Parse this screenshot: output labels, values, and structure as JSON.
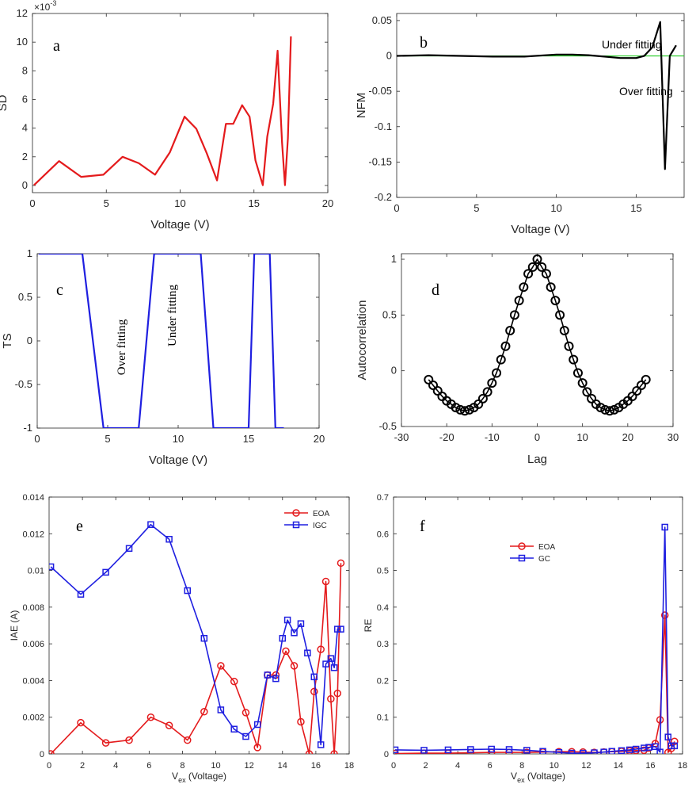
{
  "chart_data": [
    {
      "panel": "a",
      "type": "line",
      "xlabel": "Voltage (V)",
      "ylabel": "SD",
      "xlim": [
        0,
        20
      ],
      "ylim": [
        -0.5,
        12
      ],
      "xticks": [
        0,
        5,
        10,
        15,
        20
      ],
      "yticks": [
        0,
        2,
        4,
        6,
        8,
        10,
        12
      ],
      "exponent": "×10",
      "exponent_power": "-3",
      "series": [
        {
          "name": "SD",
          "color": "#e41a1c",
          "x": [
            0.1,
            1.8,
            3.3,
            4.8,
            6.1,
            7.2,
            8.3,
            9.3,
            10.3,
            11.1,
            11.8,
            12.5,
            13.1,
            13.6,
            14.2,
            14.7,
            15.1,
            15.6,
            15.9,
            16.3,
            16.6,
            16.9,
            17.1,
            17.3,
            17.5
          ],
          "values": [
            0.02,
            1.7,
            0.6,
            0.75,
            2.0,
            1.55,
            0.75,
            2.3,
            4.8,
            3.95,
            2.25,
            0.35,
            4.3,
            4.3,
            5.6,
            4.8,
            1.75,
            0.02,
            3.4,
            5.7,
            9.4,
            3.0,
            0.02,
            3.3,
            10.4
          ]
        }
      ]
    },
    {
      "panel": "b",
      "type": "line",
      "xlabel": "Voltage (V)",
      "ylabel": "NFM",
      "xlim": [
        0,
        18
      ],
      "ylim": [
        -0.2,
        0.06
      ],
      "xticks": [
        0,
        5,
        10,
        15
      ],
      "yticks": [
        0.05,
        0,
        -0.05,
        -0.1,
        -0.15,
        -0.2
      ],
      "ytick_labels": [
        "0.05",
        "0",
        "-0.05",
        "-0.1",
        "-0.15",
        "-0.2"
      ],
      "annotations": [
        "Under fitting",
        "Over fitting"
      ],
      "reference_line": {
        "y": 0,
        "color": "#22cc22"
      },
      "series": [
        {
          "name": "NFM",
          "color": "#000000",
          "x": [
            0,
            2,
            4,
            6,
            8,
            10,
            11,
            12,
            13,
            14,
            14.5,
            15,
            15.5,
            16,
            16.5,
            16.8,
            17.1,
            17.5
          ],
          "values": [
            0,
            0.001,
            0,
            -0.001,
            -0.001,
            0.002,
            0.002,
            0.001,
            -0.001,
            -0.003,
            -0.003,
            -0.003,
            0,
            0.012,
            0.048,
            -0.16,
            0,
            0.015
          ]
        }
      ]
    },
    {
      "panel": "c",
      "type": "line",
      "xlabel": "Voltage (V)",
      "ylabel": "TS",
      "xlim": [
        0,
        20
      ],
      "ylim": [
        -1,
        1
      ],
      "xticks": [
        0,
        5,
        10,
        15,
        20
      ],
      "yticks": [
        1,
        0.5,
        0,
        -0.5,
        -1
      ],
      "ytick_labels": [
        "1",
        "0.5",
        "0",
        "-0.5",
        "-1"
      ],
      "annotations": [
        "Over fitting",
        "Under fitting"
      ],
      "series": [
        {
          "name": "TS",
          "color": "#1f1fe0",
          "x": [
            0.1,
            3.2,
            4.7,
            7.2,
            8.3,
            11.6,
            12.5,
            15.0,
            15.4,
            16.5,
            16.9,
            17.5
          ],
          "values": [
            1,
            1,
            -1,
            -1,
            1,
            1,
            -1,
            -1,
            1,
            1,
            -1,
            -1
          ]
        }
      ]
    },
    {
      "panel": "d",
      "type": "line",
      "xlabel": "Lag",
      "ylabel": "Autocorrelation",
      "xlim": [
        -30,
        30
      ],
      "ylim": [
        -0.5,
        1.05
      ],
      "xticks": [
        -30,
        -20,
        -10,
        0,
        10,
        20,
        30
      ],
      "yticks": [
        1,
        0.5,
        0,
        -0.5
      ],
      "ytick_labels": [
        "1",
        "0.5",
        "0",
        "-0.5"
      ],
      "marker": "circle",
      "series": [
        {
          "name": "Autocorrelation",
          "color": "#000000",
          "x": [
            -24,
            -23,
            -22,
            -21,
            -20,
            -19,
            -18,
            -17,
            -16,
            -15,
            -14,
            -13,
            -12,
            -11,
            -10,
            -9,
            -8,
            -7,
            -6,
            -5,
            -4,
            -3,
            -2,
            -1,
            0,
            1,
            2,
            3,
            4,
            5,
            6,
            7,
            8,
            9,
            10,
            11,
            12,
            13,
            14,
            15,
            16,
            17,
            18,
            19,
            20,
            21,
            22,
            23,
            24
          ],
          "values": [
            -0.08,
            -0.13,
            -0.18,
            -0.23,
            -0.27,
            -0.3,
            -0.33,
            -0.35,
            -0.36,
            -0.35,
            -0.33,
            -0.3,
            -0.25,
            -0.19,
            -0.11,
            -0.02,
            0.1,
            0.22,
            0.36,
            0.5,
            0.63,
            0.75,
            0.87,
            0.93,
            1.0,
            0.93,
            0.87,
            0.75,
            0.63,
            0.5,
            0.36,
            0.22,
            0.1,
            -0.02,
            -0.11,
            -0.19,
            -0.25,
            -0.3,
            -0.33,
            -0.35,
            -0.36,
            -0.35,
            -0.33,
            -0.3,
            -0.27,
            -0.23,
            -0.18,
            -0.13,
            -0.08
          ]
        }
      ]
    },
    {
      "panel": "e",
      "type": "line",
      "xlabel": "V",
      "xlabel_sub": "ex",
      "xlabel_rest": " (Voltage)",
      "ylabel": "IAE (A)",
      "xlim": [
        0,
        18
      ],
      "ylim": [
        0,
        0.014
      ],
      "xticks": [
        0,
        2,
        4,
        6,
        8,
        10,
        12,
        14,
        16,
        18
      ],
      "yticks": [
        0,
        0.002,
        0.004,
        0.006,
        0.008,
        0.01,
        0.012,
        0.014
      ],
      "ytick_labels": [
        "0",
        "0.002",
        "0.004",
        "0.006",
        "0.008",
        "0.01",
        "0.012",
        "0.014"
      ],
      "legend": {
        "position": "top-right",
        "entries": [
          "EOA",
          "IGC"
        ]
      },
      "series": [
        {
          "name": "EOA",
          "color": "#e41a1c",
          "marker": "circle",
          "x": [
            0.1,
            1.9,
            3.4,
            4.8,
            6.1,
            7.2,
            8.3,
            9.3,
            10.3,
            11.1,
            11.8,
            12.5,
            13.1,
            13.6,
            14.2,
            14.7,
            15.1,
            15.6,
            15.9,
            16.3,
            16.6,
            16.9,
            17.1,
            17.3,
            17.5
          ],
          "values": [
            0,
            0.0017,
            0.0006,
            0.00075,
            0.002,
            0.00155,
            0.00075,
            0.0023,
            0.0048,
            0.00395,
            0.00225,
            0.00035,
            0.0043,
            0.0043,
            0.0056,
            0.0048,
            0.00175,
            0,
            0.0034,
            0.0057,
            0.0094,
            0.003,
            0,
            0.0033,
            0.0104
          ]
        },
        {
          "name": "IGC",
          "color": "#1f1fe0",
          "marker": "square",
          "x": [
            0.1,
            1.9,
            3.4,
            4.8,
            6.1,
            7.2,
            8.3,
            9.3,
            10.3,
            11.1,
            11.8,
            12.5,
            13.1,
            13.6,
            14.0,
            14.3,
            14.7,
            15.1,
            15.5,
            15.9,
            16.3,
            16.6,
            16.9,
            17.1,
            17.3,
            17.5
          ],
          "values": [
            0.0102,
            0.0087,
            0.0099,
            0.0112,
            0.0125,
            0.0117,
            0.0089,
            0.0063,
            0.0024,
            0.00135,
            0.00095,
            0.0016,
            0.0043,
            0.0041,
            0.0063,
            0.0073,
            0.0066,
            0.0071,
            0.0055,
            0.0042,
            0.0005,
            0.0049,
            0.0052,
            0.0047,
            0.0068,
            0.0068
          ]
        }
      ]
    },
    {
      "panel": "f",
      "type": "line",
      "xlabel": "V",
      "xlabel_sub": "ex",
      "xlabel_rest": " (Voltage)",
      "ylabel": "RE",
      "xlim": [
        0,
        18
      ],
      "ylim": [
        0,
        0.7
      ],
      "xticks": [
        0,
        2,
        4,
        6,
        8,
        10,
        12,
        14,
        16,
        18
      ],
      "yticks": [
        0,
        0.1,
        0.2,
        0.3,
        0.4,
        0.5,
        0.6,
        0.7
      ],
      "ytick_labels": [
        "0",
        "0.1",
        "0.2",
        "0.3",
        "0.4",
        "0.5",
        "0.6",
        "0.7"
      ],
      "legend": {
        "position": "top-left",
        "entries": [
          "EOA",
          "GC"
        ]
      },
      "series": [
        {
          "name": "EOA",
          "color": "#e41a1c",
          "marker": "circle",
          "x": [
            0.1,
            1.9,
            3.4,
            4.8,
            6.1,
            7.2,
            8.3,
            9.3,
            10.3,
            11.1,
            11.8,
            12.5,
            13.1,
            13.6,
            14.2,
            14.7,
            15.1,
            15.6,
            15.9,
            16.3,
            16.6,
            16.9,
            17.1,
            17.3,
            17.5
          ],
          "values": [
            0.001,
            0.002,
            0.002,
            0.003,
            0.004,
            0.004,
            0.004,
            0.005,
            0.006,
            0.006,
            0.005,
            0.004,
            0.005,
            0.006,
            0.007,
            0.008,
            0.009,
            0.01,
            0.016,
            0.028,
            0.093,
            0.378,
            0.004,
            0.015,
            0.034
          ]
        },
        {
          "name": "GC",
          "color": "#1f1fe0",
          "marker": "square",
          "x": [
            0.1,
            1.9,
            3.4,
            4.8,
            6.1,
            7.2,
            8.3,
            9.3,
            10.3,
            11.1,
            11.8,
            12.5,
            13.1,
            13.6,
            14.2,
            14.7,
            15.1,
            15.6,
            15.9,
            16.3,
            16.6,
            16.9,
            17.1,
            17.3,
            17.5
          ],
          "values": [
            0.011,
            0.01,
            0.011,
            0.012,
            0.013,
            0.012,
            0.01,
            0.007,
            0.004,
            0.002,
            0.002,
            0.003,
            0.005,
            0.007,
            0.009,
            0.011,
            0.013,
            0.016,
            0.018,
            0.02,
            0.005,
            0.618,
            0.046,
            0.022,
            0.022
          ]
        }
      ]
    }
  ]
}
